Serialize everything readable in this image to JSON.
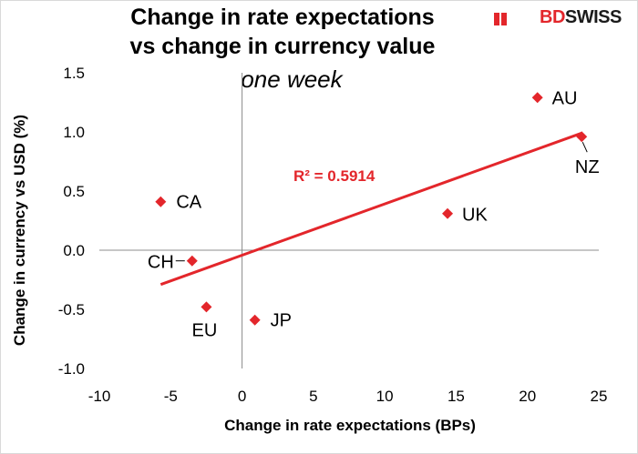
{
  "logo": {
    "part1": "BD",
    "part2": "SWISS"
  },
  "chart_data": {
    "type": "scatter",
    "title_line1": "Change in rate expectations",
    "title_line2": "vs change in currency value",
    "subtitle": "one week",
    "xlabel": "Change in rate expectations (BPs)",
    "ylabel": "Change in currency vs USD (%)",
    "xlim": [
      -10,
      25
    ],
    "ylim": [
      -1.0,
      1.5
    ],
    "xticks": [
      -10,
      -5,
      0,
      5,
      10,
      15,
      20,
      25
    ],
    "yticks": [
      -1.0,
      -0.5,
      0.0,
      0.5,
      1.0,
      1.5
    ],
    "xtick_labels": [
      "-10",
      "-5",
      "0",
      "5",
      "10",
      "15",
      "20",
      "25"
    ],
    "ytick_labels": [
      "-1.0",
      "-0.5",
      "0.0",
      "0.5",
      "1.0",
      "1.5"
    ],
    "points": [
      {
        "label": "AU",
        "x": 20.7,
        "y": 1.29
      },
      {
        "label": "NZ",
        "x": 23.8,
        "y": 0.96
      },
      {
        "label": "UK",
        "x": 14.4,
        "y": 0.31
      },
      {
        "label": "CA",
        "x": -5.7,
        "y": 0.41
      },
      {
        "label": "CH",
        "x": -3.5,
        "y": -0.09
      },
      {
        "label": "EU",
        "x": -2.5,
        "y": -0.48
      },
      {
        "label": "JP",
        "x": 0.9,
        "y": -0.59
      }
    ],
    "trendline": {
      "x": [
        -5.7,
        23.8
      ],
      "y": [
        -0.29,
        0.99
      ],
      "r_squared_label": "R² = 0.5914"
    },
    "colors": {
      "marker": "#e3262b",
      "trendline": "#e3262b",
      "axis": "#8c8c8c"
    }
  }
}
